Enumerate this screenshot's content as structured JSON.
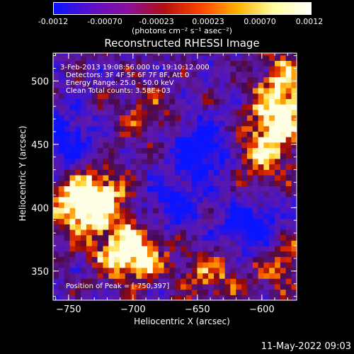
{
  "colorbar": {
    "ticks": [
      "-0.0012",
      "-0.00070",
      "-0.00023",
      "0.00023",
      "0.00070",
      "0.0012"
    ],
    "units": "(photons cm⁻² s⁻¹ asec⁻²)",
    "colors": [
      "#0a14ff",
      "#5a10c8",
      "#8a10a0",
      "#b01010",
      "#ff4400",
      "#ffb000",
      "#ffffa0",
      "#ffffff"
    ]
  },
  "annotations": {
    "line1": "3-Feb-2013 19:08:56.000 to 19:10:12.000",
    "line2": "Detectors: 3F 4F 5F 6F 7F 8F, Att 0",
    "line3": "Energy Range: 25.0 - 50.0 keV",
    "line4": "Clean    Total counts: 3.58E+03",
    "peak": "Position of Peak = [-750,397]"
  },
  "timestamp": "11-May-2022 09:03",
  "chart_data": {
    "type": "heatmap",
    "title": "Reconstructed RHESSI Image",
    "xlabel": "Heliocentric X (arcsec)",
    "ylabel": "Heliocentric Y (arcsec)",
    "xlim": [
      -762,
      -573
    ],
    "ylim": [
      327,
      522
    ],
    "xticks": [
      -750,
      -700,
      -650,
      -600
    ],
    "yticks": [
      350,
      400,
      450,
      500
    ],
    "xtick_labels": [
      "−750",
      "−700",
      "−650",
      "−600"
    ],
    "ytick_labels": [
      "350",
      "400",
      "450",
      "500"
    ],
    "colorbar_range": [
      -0.0012,
      0.0012
    ],
    "peak_position": [
      -750,
      397
    ],
    "bright_regions": [
      {
        "x": -745,
        "y": 398,
        "level": 1.0
      },
      {
        "x": -728,
        "y": 410,
        "level": 0.9
      },
      {
        "x": -712,
        "y": 365,
        "level": 0.85
      },
      {
        "x": -695,
        "y": 360,
        "level": 0.7
      },
      {
        "x": -590,
        "y": 470,
        "level": 0.95
      },
      {
        "x": -582,
        "y": 500,
        "level": 0.8
      },
      {
        "x": -600,
        "y": 440,
        "level": 0.75
      },
      {
        "x": -585,
        "y": 355,
        "level": 0.7
      },
      {
        "x": -640,
        "y": 345,
        "level": 0.65
      },
      {
        "x": -690,
        "y": 470,
        "level": 0.55
      }
    ],
    "dim_regions": [
      {
        "x": -650,
        "y": 445,
        "level": -0.9
      },
      {
        "x": -610,
        "y": 380,
        "level": -0.85
      },
      {
        "x": -755,
        "y": 450,
        "level": -0.8
      },
      {
        "x": -670,
        "y": 400,
        "level": -0.6
      }
    ]
  }
}
